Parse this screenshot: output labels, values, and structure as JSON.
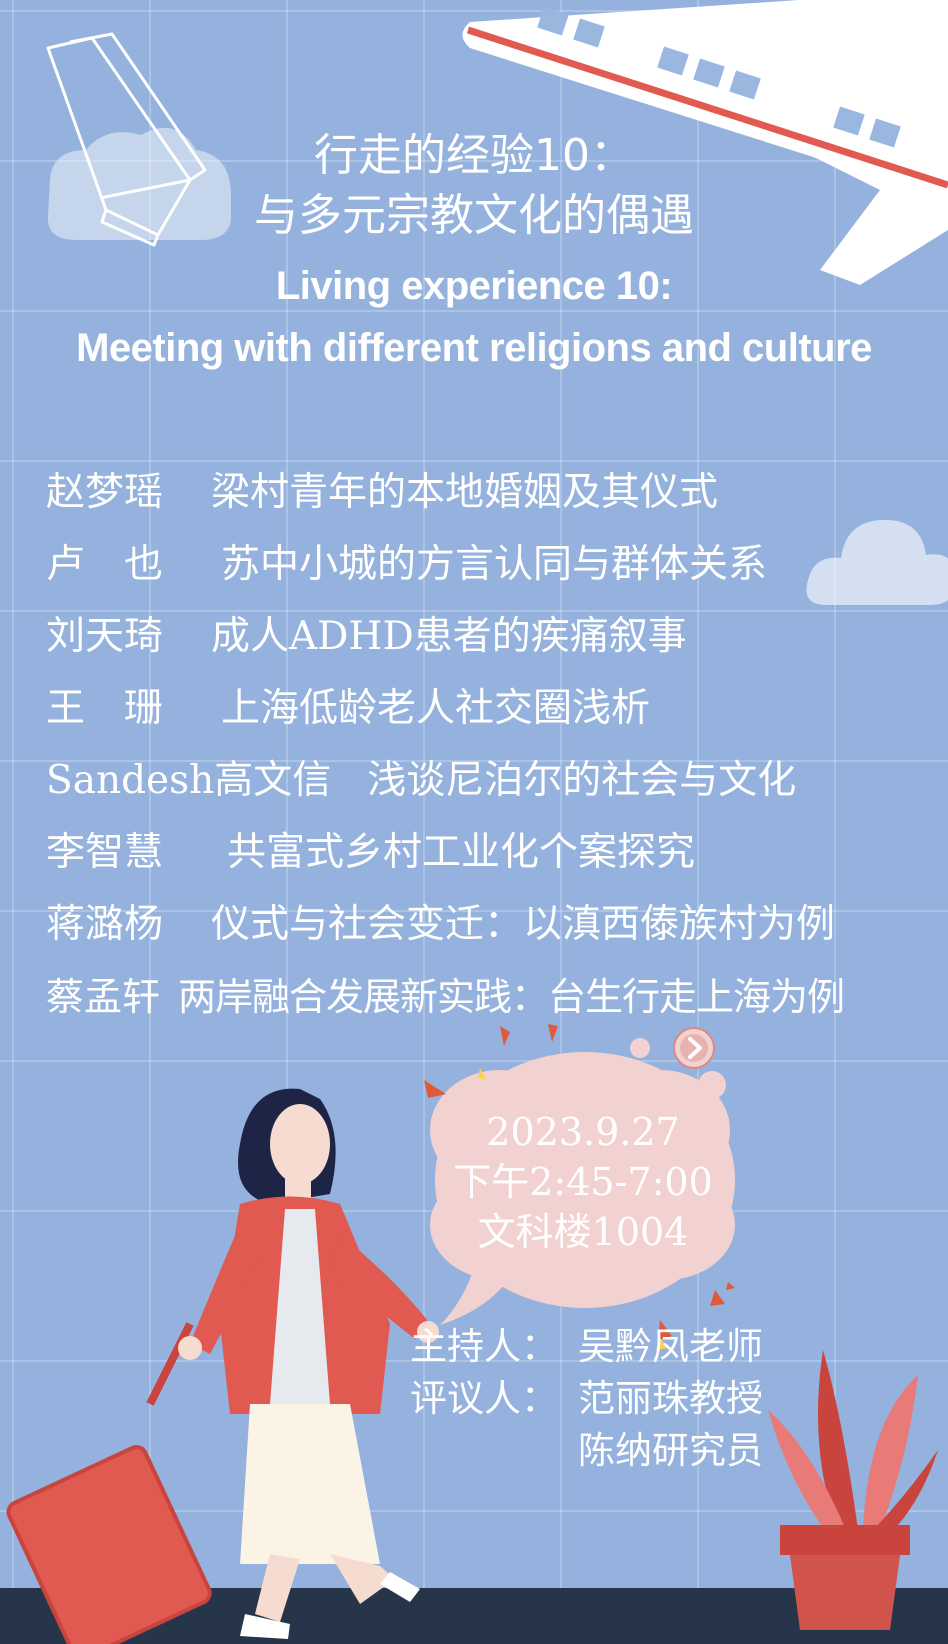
{
  "title": {
    "cn_line1": "行走的经验10：",
    "cn_line2": "与多元宗教文化的偶遇",
    "en_line1": "Living experience 10:",
    "en_line2": "Meeting with different religions and culture"
  },
  "program": [
    {
      "name": "赵梦瑶",
      "topic": "梁村青年的本地婚姻及其仪式"
    },
    {
      "name": "卢　也",
      "topic": "苏中小城的方言认同与群体关系"
    },
    {
      "name": "刘天琦",
      "topic": "成人ADHD患者的疾痛叙事"
    },
    {
      "name": "王　珊",
      "topic": "上海低龄老人社交圈浅析"
    },
    {
      "name": "Sandesh高文信",
      "topic": "浅谈尼泊尔的社会与文化"
    },
    {
      "name": "李智慧",
      "topic": "共富式乡村工业化个案探究"
    },
    {
      "name": "蒋潞杨",
      "topic": "仪式与社会变迁：以滇西傣族村为例"
    },
    {
      "name": "蔡孟轩",
      "topic": "两岸融合发展新实践：台生行走上海为例"
    }
  ],
  "event": {
    "date": "2023.9.27",
    "time": "下午2:45-7:00",
    "venue": "文科楼1004"
  },
  "roles": {
    "host_label": "主持人：",
    "host": "吴黔凤老师",
    "discussant_label": "评议人：",
    "discussant_1": "范丽珠教授",
    "discussant_2": "陈纳研究员"
  },
  "colors": {
    "background": "#94b2dd",
    "bubble": "#f2d2d0",
    "coat": "#e05a52",
    "ground": "#27354a"
  },
  "icons": {
    "book": "open-book-outline-icon",
    "plane": "airplane-icon",
    "cloud": "cloud-icon",
    "bubble_arrow": "arrow-right-circle-icon"
  }
}
